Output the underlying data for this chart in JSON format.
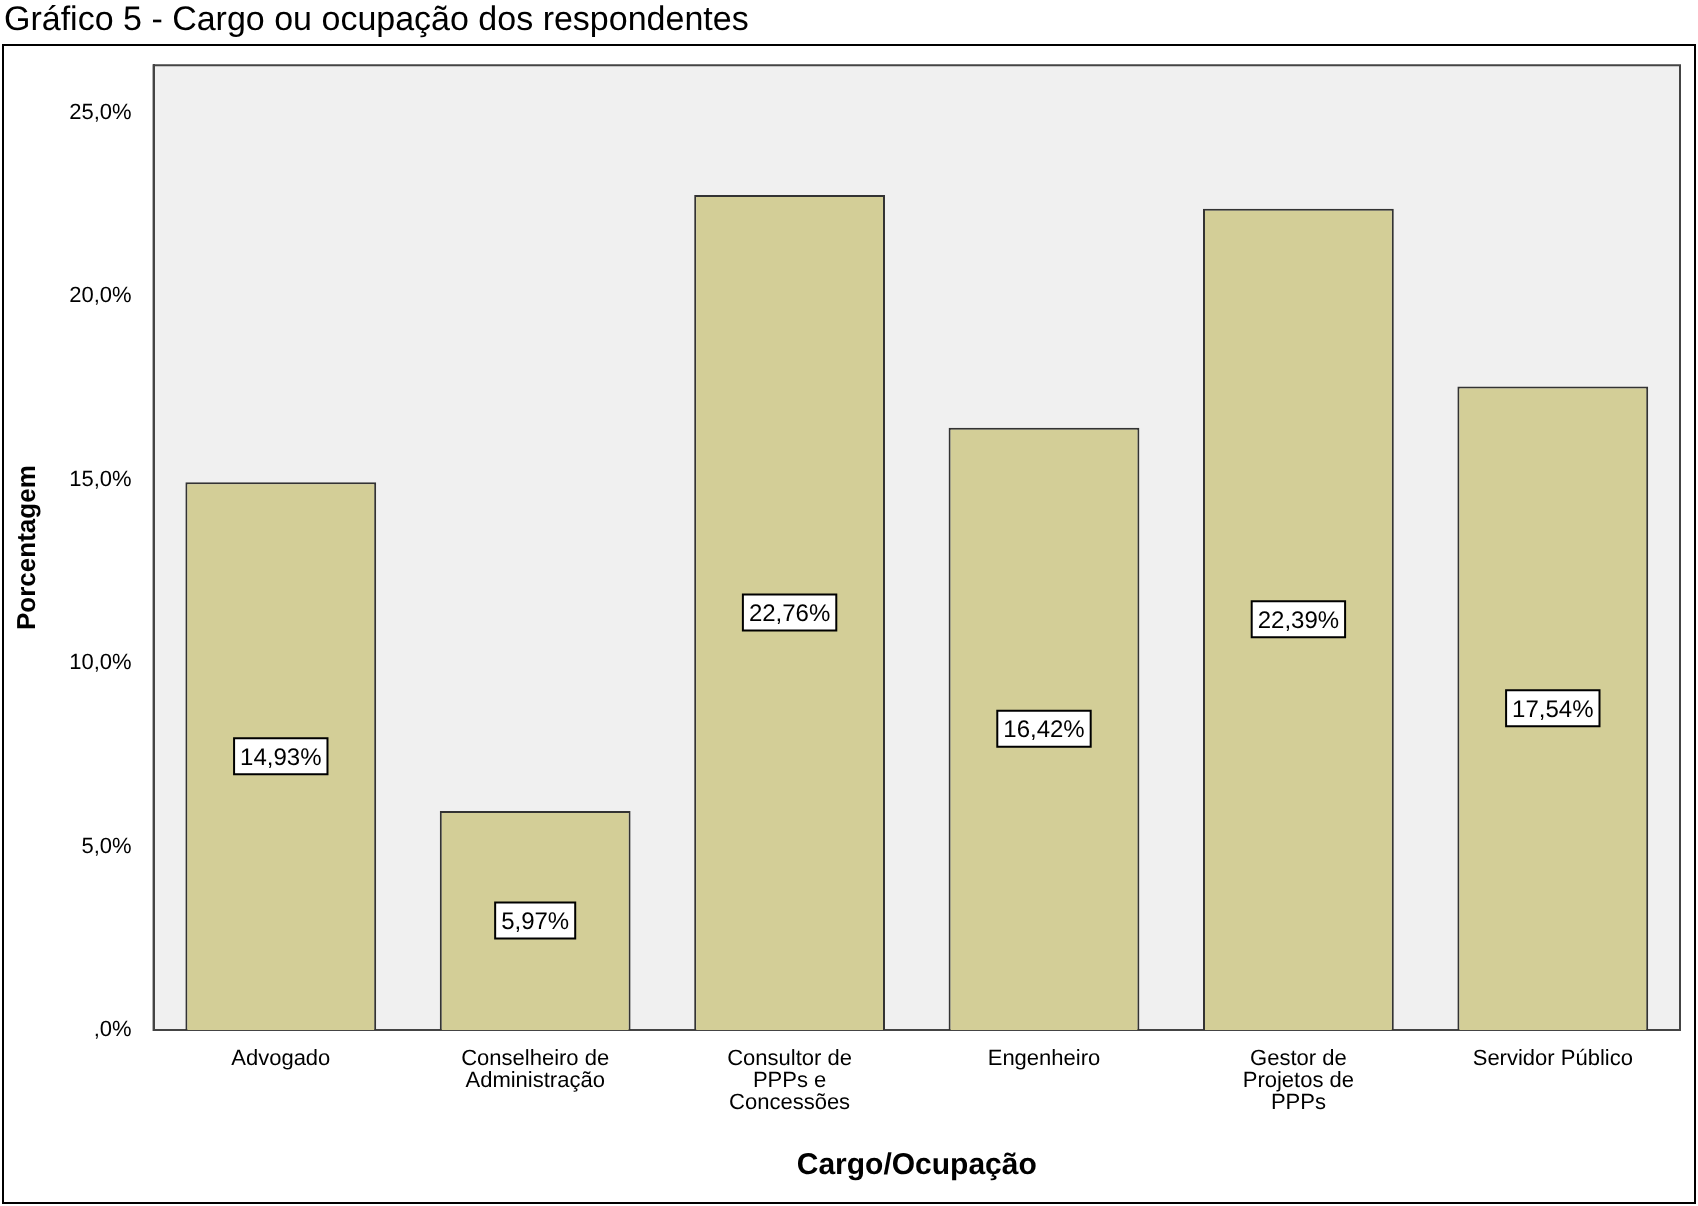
{
  "chart_data": {
    "type": "bar",
    "title": "Gráfico 5 - Cargo ou ocupação dos respondentes",
    "xlabel": "Cargo/Ocupação",
    "ylabel": "Porcentagem",
    "categories": [
      "Advogado",
      "Conselheiro de Administração",
      "Consultor de PPPs e Concessões",
      "Engenheiro",
      "Gestor de Projetos de PPPs",
      "Servidor Público"
    ],
    "values": [
      14.93,
      5.97,
      22.76,
      16.42,
      22.39,
      17.54
    ],
    "value_labels": [
      "14,93%",
      "5,97%",
      "22,76%",
      "16,42%",
      "22,39%",
      "17,54%"
    ],
    "color": "#d3ce97",
    "ylim": [
      0,
      26.3
    ],
    "yticks": [
      {
        "value": 0,
        "label": ",0%"
      },
      {
        "value": 5,
        "label": "5,0%"
      },
      {
        "value": 10,
        "label": "10,0%"
      },
      {
        "value": 15,
        "label": "15,0%"
      },
      {
        "value": 20,
        "label": "20,0%"
      },
      {
        "value": 25,
        "label": "25,0%"
      }
    ],
    "grid": false,
    "legend": false
  }
}
